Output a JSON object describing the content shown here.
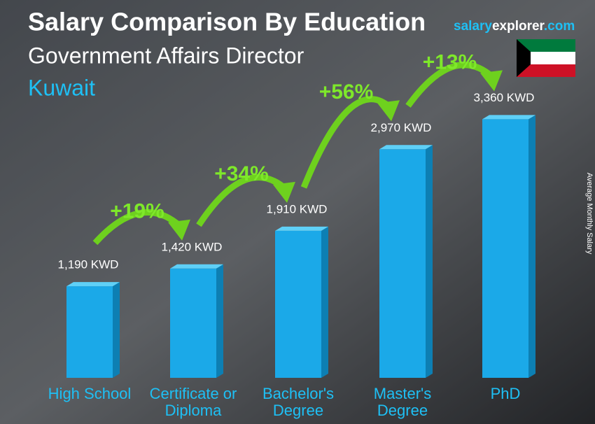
{
  "chart_data": {
    "type": "bar",
    "title": "Salary Comparison By Education",
    "subtitle": "Government Affairs Director",
    "location": "Kuwait",
    "brand": [
      "salary",
      "explorer",
      ".com"
    ],
    "y_axis_label": "Average Monthly Salary",
    "categories": [
      "High School",
      "Certificate or Diploma",
      "Bachelor's Degree",
      "Master's Degree",
      "PhD"
    ],
    "values": [
      1190,
      1420,
      1910,
      2970,
      3360
    ],
    "value_labels": [
      "1,190 KWD",
      "1,420 KWD",
      "1,910 KWD",
      "2,970 KWD",
      "3,360 KWD"
    ],
    "annotations": [
      "+19%",
      "+34%",
      "+56%",
      "+13%"
    ],
    "color": "#1ba9e8"
  }
}
